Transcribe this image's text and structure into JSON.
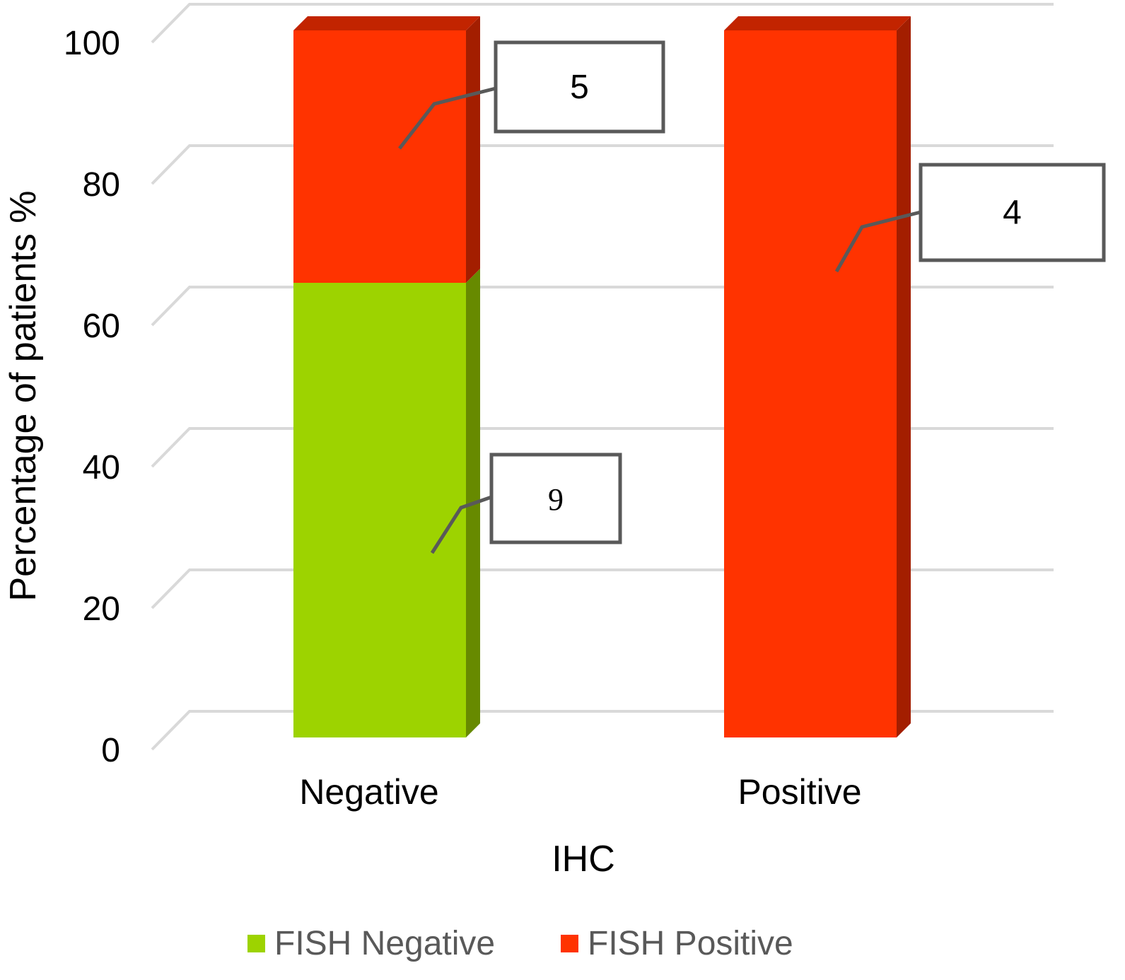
{
  "chart_data": {
    "type": "bar",
    "stacked": true,
    "style": "3d-column",
    "categories": [
      "Negative",
      "Positive"
    ],
    "series": [
      {
        "name": "FISH Negative",
        "color": "#9dd300",
        "side_color": "#678a00",
        "values": [
          64.3,
          0
        ],
        "counts": [
          "9",
          ""
        ]
      },
      {
        "name": "FISH Positive",
        "color": "#ff3300",
        "side_color": "#a31e00",
        "top_color": "#c22400",
        "values": [
          35.7,
          100
        ],
        "counts": [
          "5",
          "4"
        ]
      }
    ],
    "xlabel": "IHC",
    "ylabel": "Percentage of patients %",
    "ylim": [
      0,
      100
    ],
    "yticks": [
      "0",
      "20",
      "40",
      "60",
      "80",
      "100"
    ],
    "grid": true,
    "legend_position": "bottom"
  }
}
